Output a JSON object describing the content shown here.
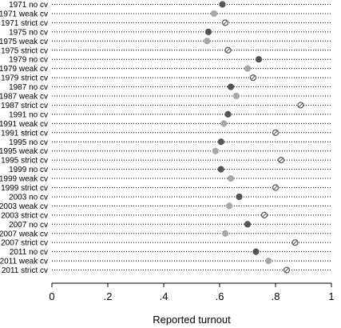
{
  "chart_data": {
    "type": "scatter",
    "subtype": "dot-plot",
    "title": "",
    "xlabel": "Reported turnout",
    "ylabel": "",
    "xlim": [
      0,
      1
    ],
    "xticks": [
      0,
      0.2,
      0.4,
      0.6,
      0.8,
      1
    ],
    "xtick_labels": [
      "0",
      ".2",
      ".4",
      ".6",
      ".8",
      "1"
    ],
    "grid": "dotted horizontal guide line per row",
    "legend": "none",
    "marker_styles": {
      "no cv": {
        "fill": "#555555",
        "stroke": "#555555",
        "shape": "filled-circle"
      },
      "weak cv": {
        "fill": "#a8a8a8",
        "stroke": "#a8a8a8",
        "shape": "filled-circle"
      },
      "strict cv": {
        "fill": "#ffffff",
        "stroke": "#555555",
        "shape": "hollow-circle-with-slash"
      }
    },
    "points": [
      {
        "label": "1971 no cv",
        "value": 0.61,
        "style": "no cv"
      },
      {
        "label": "1971 weak cv",
        "value": 0.58,
        "style": "weak cv"
      },
      {
        "label": "1971 strict cv",
        "value": 0.62,
        "style": "strict cv"
      },
      {
        "label": "1975 no cv",
        "value": 0.56,
        "style": "no cv"
      },
      {
        "label": "1975 weak cv",
        "value": 0.555,
        "style": "weak cv"
      },
      {
        "label": "1975 strict cv",
        "value": 0.63,
        "style": "strict cv"
      },
      {
        "label": "1979 no cv",
        "value": 0.74,
        "style": "no cv"
      },
      {
        "label": "1979 weak cv",
        "value": 0.7,
        "style": "weak cv"
      },
      {
        "label": "1979 strict cv",
        "value": 0.72,
        "style": "strict cv"
      },
      {
        "label": "1987 no cv",
        "value": 0.64,
        "style": "no cv"
      },
      {
        "label": "1987 weak cv",
        "value": 0.66,
        "style": "weak cv"
      },
      {
        "label": "1987 strict cv",
        "value": 0.89,
        "style": "strict cv"
      },
      {
        "label": "1991 no cv",
        "value": 0.63,
        "style": "no cv"
      },
      {
        "label": "1991 weak cv",
        "value": 0.615,
        "style": "weak cv"
      },
      {
        "label": "1991 strict cv",
        "value": 0.8,
        "style": "strict cv"
      },
      {
        "label": "1995 no cv",
        "value": 0.605,
        "style": "no cv"
      },
      {
        "label": "1995 weak cv",
        "value": 0.585,
        "style": "weak cv"
      },
      {
        "label": "1995 strict cv",
        "value": 0.82,
        "style": "strict cv"
      },
      {
        "label": "1999 no cv",
        "value": 0.605,
        "style": "no cv"
      },
      {
        "label": "1999 weak cv",
        "value": 0.64,
        "style": "weak cv"
      },
      {
        "label": "1999 strict cv",
        "value": 0.8,
        "style": "strict cv"
      },
      {
        "label": "2003 no cv",
        "value": 0.67,
        "style": "no cv"
      },
      {
        "label": "2003 weak cv",
        "value": 0.635,
        "style": "weak cv"
      },
      {
        "label": "2003 strict cv",
        "value": 0.76,
        "style": "strict cv"
      },
      {
        "label": "2007 no cv",
        "value": 0.7,
        "style": "no cv"
      },
      {
        "label": "2007 weak cv",
        "value": 0.62,
        "style": "weak cv"
      },
      {
        "label": "2007 strict cv",
        "value": 0.87,
        "style": "strict cv"
      },
      {
        "label": "2011 no cv",
        "value": 0.73,
        "style": "no cv"
      },
      {
        "label": "2011 weak cv",
        "value": 0.775,
        "style": "weak cv"
      },
      {
        "label": "2011 strict cv",
        "value": 0.84,
        "style": "strict cv"
      }
    ]
  }
}
